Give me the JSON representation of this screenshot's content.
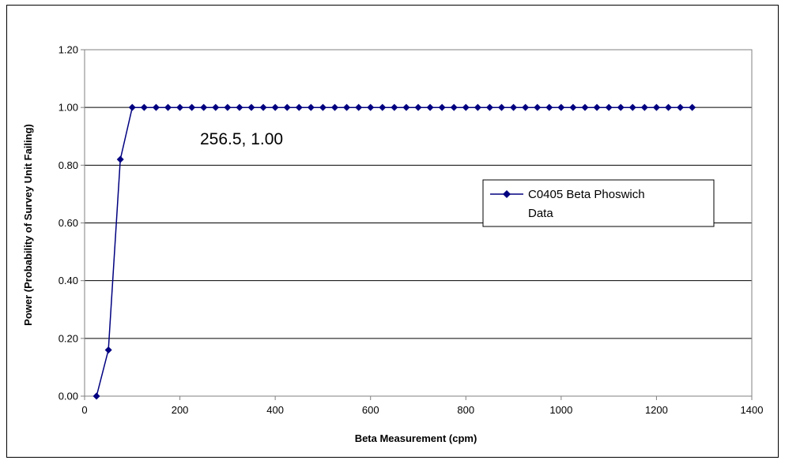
{
  "chart_data": {
    "type": "line",
    "xlabel": "Beta Measurement (cpm)",
    "ylabel": "Power (Probability of Survey Unit Failing)",
    "xlim": [
      0,
      1400
    ],
    "ylim": [
      0,
      1.2
    ],
    "x_ticks": [
      "0",
      "200",
      "400",
      "600",
      "800",
      "1000",
      "1200",
      "1400"
    ],
    "y_ticks": [
      "0.00",
      "0.20",
      "0.40",
      "0.60",
      "0.80",
      "1.00",
      "1.20"
    ],
    "grid": "horizontal",
    "legend": "right",
    "annotation": {
      "text": "256.5, 1.00"
    },
    "series": [
      {
        "name": "C0405 Beta Phoswich Data",
        "color": "#000080",
        "marker": "diamond",
        "x": [
          25,
          50,
          75,
          100,
          125,
          150,
          175,
          200,
          225,
          250,
          275,
          300,
          325,
          350,
          375,
          400,
          425,
          450,
          475,
          500,
          525,
          550,
          575,
          600,
          625,
          650,
          675,
          700,
          725,
          750,
          775,
          800,
          825,
          850,
          875,
          900,
          925,
          950,
          975,
          1000,
          1025,
          1050,
          1075,
          1100,
          1125,
          1150,
          1175,
          1200,
          1225,
          1250,
          1275
        ],
        "y": [
          0.0,
          0.16,
          0.82,
          1.0,
          1.0,
          1.0,
          1.0,
          1.0,
          1.0,
          1.0,
          1.0,
          1.0,
          1.0,
          1.0,
          1.0,
          1.0,
          1.0,
          1.0,
          1.0,
          1.0,
          1.0,
          1.0,
          1.0,
          1.0,
          1.0,
          1.0,
          1.0,
          1.0,
          1.0,
          1.0,
          1.0,
          1.0,
          1.0,
          1.0,
          1.0,
          1.0,
          1.0,
          1.0,
          1.0,
          1.0,
          1.0,
          1.0,
          1.0,
          1.0,
          1.0,
          1.0,
          1.0,
          1.0,
          1.0,
          1.0,
          1.0
        ]
      }
    ]
  }
}
